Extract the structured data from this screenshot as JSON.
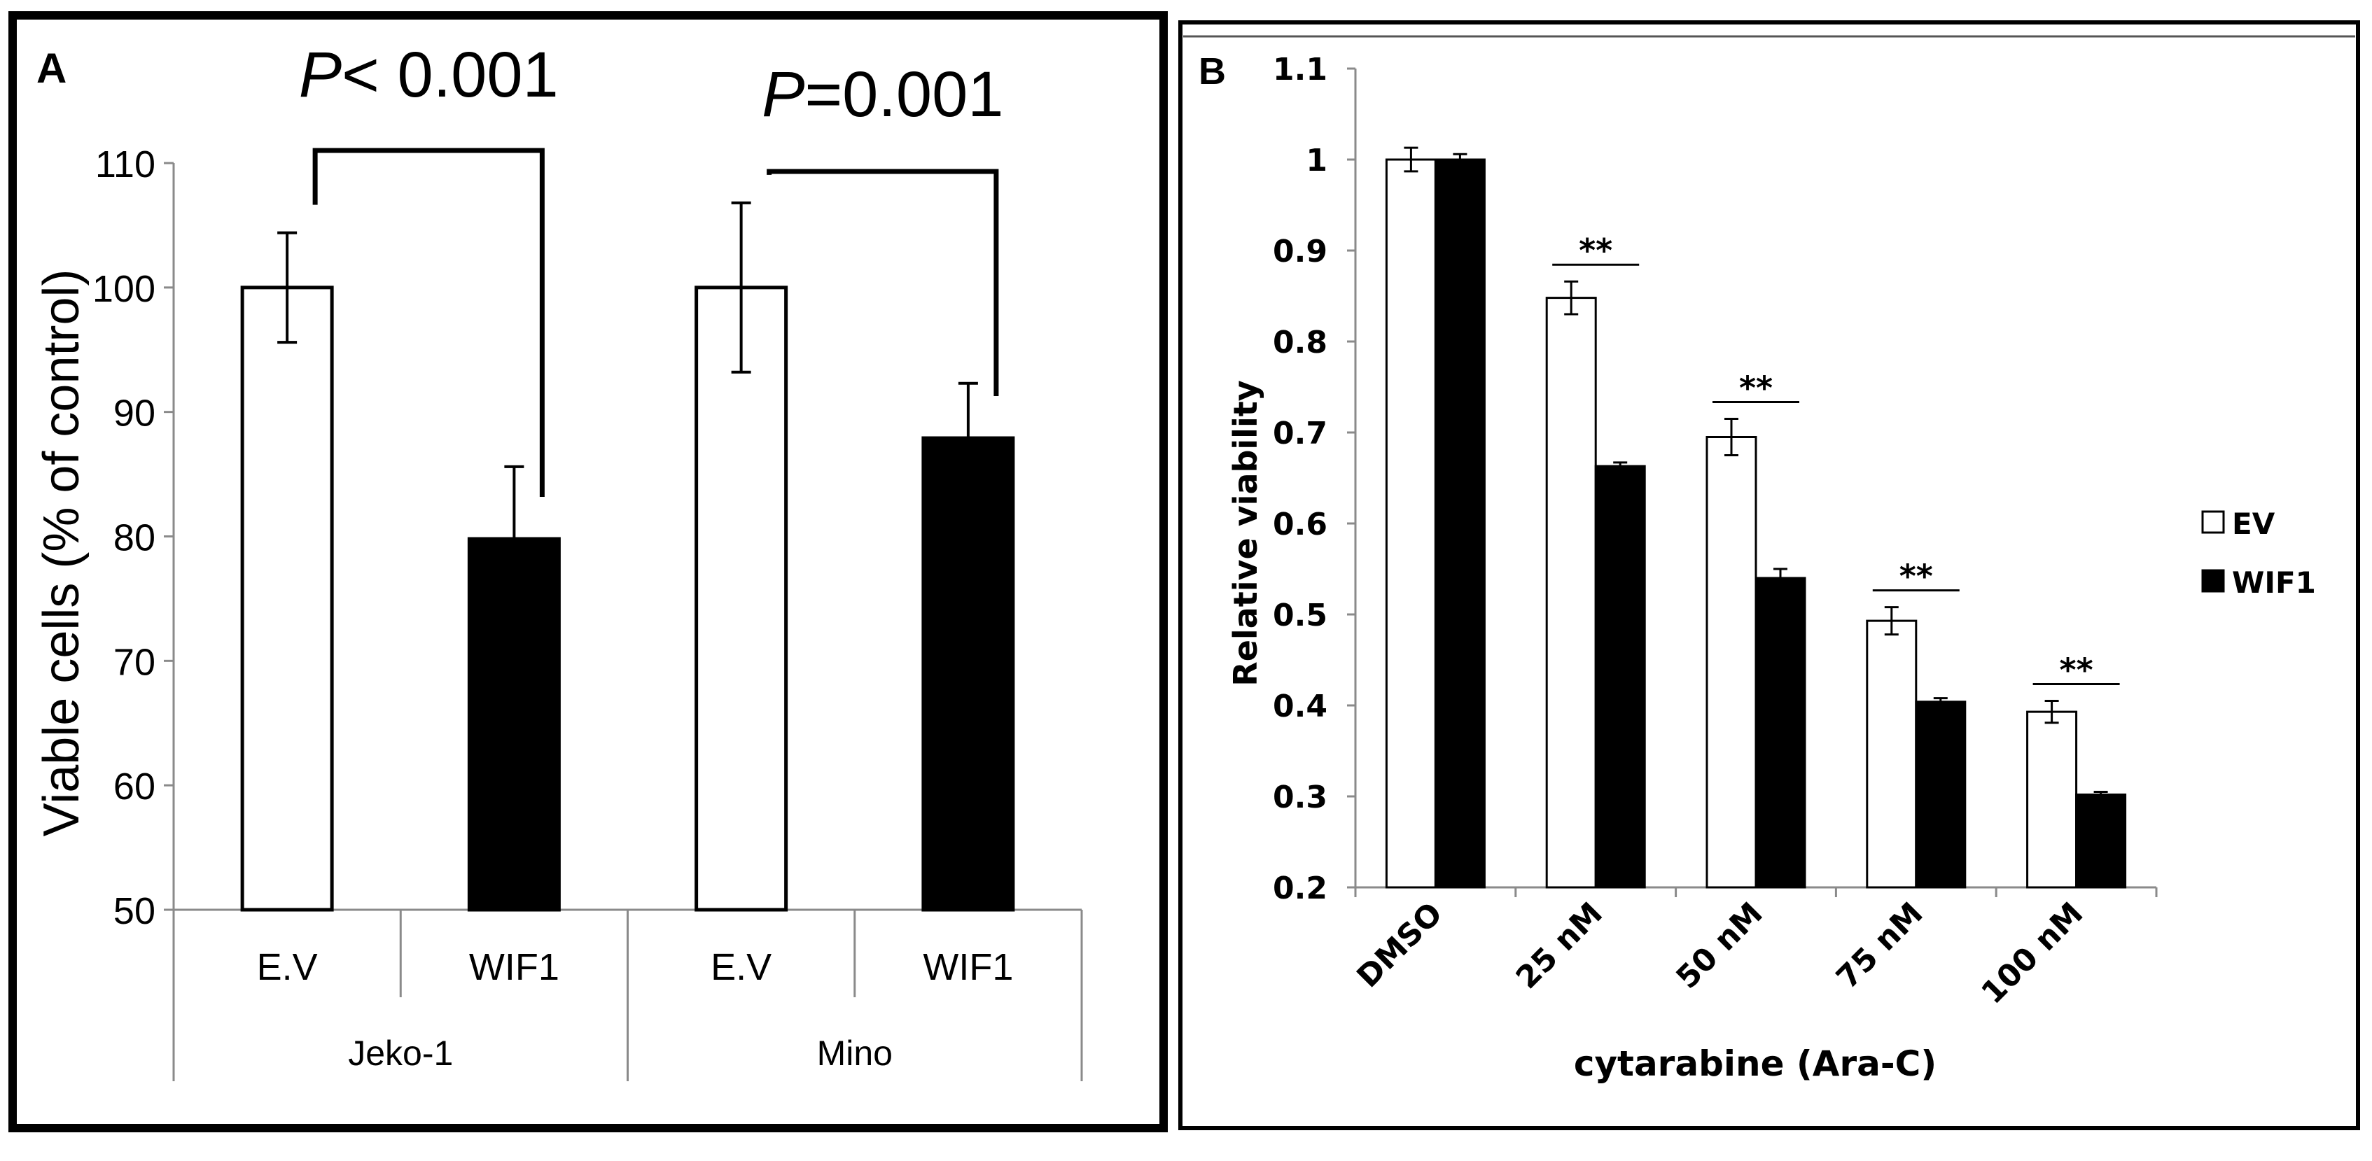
{
  "colors": {
    "ev": "#ffffff",
    "wif1": "#000000",
    "axis": "#8a8a8a",
    "ink": "#000000"
  },
  "chart_data": [
    {
      "panel_label": "A",
      "type": "bar",
      "ylabel": "Viable cells (% of control)",
      "ylim": [
        50,
        110
      ],
      "yticks": [
        "50",
        "60",
        "70",
        "80",
        "90",
        "100",
        "110"
      ],
      "groups": [
        {
          "name": "Jeko-1",
          "bars": [
            {
              "label": "E.V",
              "series": "ev",
              "value": 100,
              "err": 4.4
            },
            {
              "label": "WIF1",
              "series": "wif1",
              "value": 79.8,
              "err": 5.8
            }
          ]
        },
        {
          "name": "Mino",
          "bars": [
            {
              "label": "E.V",
              "series": "ev",
              "value": 100,
              "err": 6.8
            },
            {
              "label": "WIF1",
              "series": "wif1",
              "value": 87.9,
              "err": 4.4
            }
          ]
        }
      ],
      "annotations": [
        {
          "p_symbol": "P",
          "p_rest": "< 0.001",
          "group": 0
        },
        {
          "p_symbol": "P",
          "p_rest": "=0.001",
          "group": 1
        }
      ]
    },
    {
      "panel_label": "B",
      "type": "bar",
      "xlabel": "cytarabine (Ara-C)",
      "ylabel": "Relative viability",
      "ylim": [
        0.2,
        1.1
      ],
      "yticks": [
        "0.2",
        "0.3",
        "0.4",
        "0.5",
        "0.6",
        "0.7",
        "0.8",
        "0.9",
        "1",
        "1.1"
      ],
      "categories": [
        "DMSO",
        "25 nM",
        "50 nM",
        "75 nM",
        "100 nM"
      ],
      "series": [
        {
          "name": "EV",
          "key": "ev",
          "values": [
            1.0,
            0.848,
            0.695,
            0.493,
            0.393
          ],
          "errors": [
            0.013,
            0.018,
            0.02,
            0.015,
            0.012
          ]
        },
        {
          "name": "WIF1",
          "key": "wif1",
          "values": [
            1.0,
            0.663,
            0.54,
            0.404,
            0.302
          ],
          "errors": [
            0.006,
            0.004,
            0.01,
            0.004,
            0.003
          ]
        }
      ],
      "significance": [
        "",
        "**",
        "**",
        "**",
        "**"
      ],
      "legend_position": "right"
    }
  ]
}
